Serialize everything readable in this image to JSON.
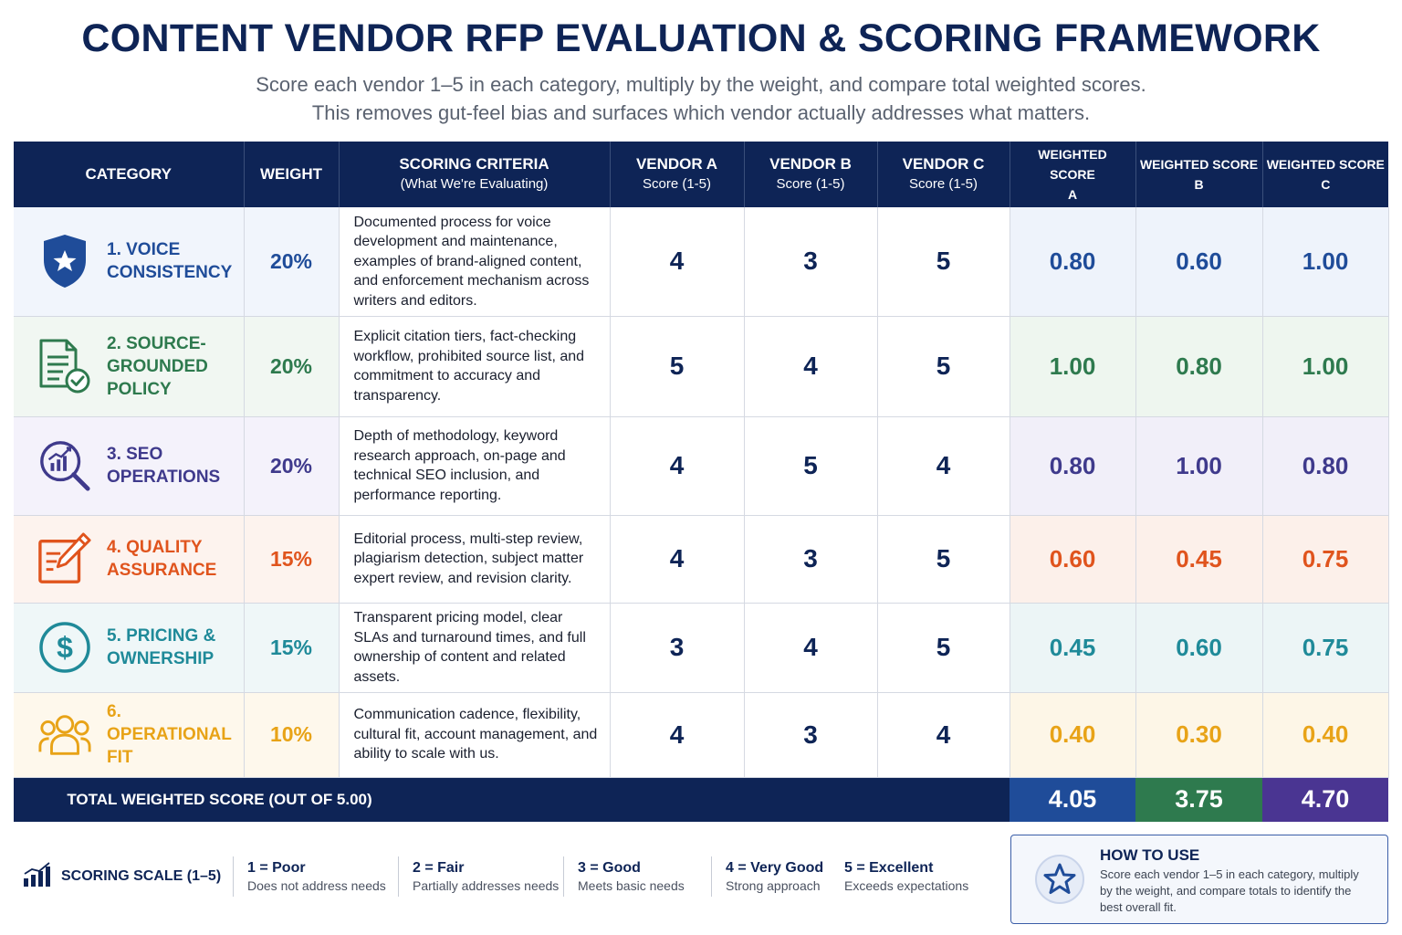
{
  "page": {
    "title": "CONTENT VENDOR RFP EVALUATION & SCORING FRAMEWORK",
    "subtitle_line1": "Score each vendor 1–5 in each category, multiply by the weight, and compare total weighted scores.",
    "subtitle_line2": "This removes gut-feel bias and surfaces which vendor actually addresses what matters."
  },
  "headers": {
    "category": "CATEGORY",
    "weight": "WEIGHT",
    "criteria": "SCORING CRITERIA",
    "criteria_sub": "(What We're Evaluating)",
    "vendor_a": "VENDOR A",
    "vendor_b": "VENDOR B",
    "vendor_c": "VENDOR C",
    "score_sub": "Score (1-5)",
    "weighted_score": "WEIGHTED SCORE",
    "ws_a": "A",
    "ws_b": "B",
    "ws_c": "C"
  },
  "rows": [
    {
      "name_line1": "1. VOICE",
      "name_line2": "CONSISTENCY",
      "name_line3": "",
      "icon": "shield-star-icon",
      "color": "#1f4c99",
      "weight": "20%",
      "criteria": "Documented process for voice development and maintenance, examples of brand-aligned content, and enforcement mechanism across writers and editors.",
      "score_a": "4",
      "score_b": "3",
      "score_c": "5",
      "ws_a": "0.80",
      "ws_b": "0.60",
      "ws_c": "1.00"
    },
    {
      "name_line1": "2. SOURCE-",
      "name_line2": "GROUNDED",
      "name_line3": "POLICY",
      "icon": "document-check-icon",
      "color": "#2e7a4e",
      "weight": "20%",
      "criteria": "Explicit citation tiers, fact-checking workflow, prohibited source list, and commitment to accuracy and transparency.",
      "score_a": "5",
      "score_b": "4",
      "score_c": "5",
      "ws_a": "1.00",
      "ws_b": "0.80",
      "ws_c": "1.00"
    },
    {
      "name_line1": "3. SEO",
      "name_line2": "OPERATIONS",
      "name_line3": "",
      "icon": "magnifier-chart-icon",
      "color": "#3f3a8c",
      "weight": "20%",
      "criteria": "Depth of methodology, keyword research approach, on-page and technical SEO inclusion, and performance reporting.",
      "score_a": "4",
      "score_b": "5",
      "score_c": "4",
      "ws_a": "0.80",
      "ws_b": "1.00",
      "ws_c": "0.80"
    },
    {
      "name_line1": "4. QUALITY",
      "name_line2": "ASSURANCE",
      "name_line3": "",
      "icon": "edit-pencil-icon",
      "color": "#e0541d",
      "weight": "15%",
      "criteria": "Editorial process, multi-step review, plagiarism detection, subject matter expert review, and revision clarity.",
      "score_a": "4",
      "score_b": "3",
      "score_c": "5",
      "ws_a": "0.60",
      "ws_b": "0.45",
      "ws_c": "0.75"
    },
    {
      "name_line1": "5. PRICING &",
      "name_line2": "OWNERSHIP",
      "name_line3": "",
      "icon": "dollar-circle-icon",
      "color": "#1f8a99",
      "weight": "15%",
      "criteria": "Transparent pricing model, clear SLAs and turnaround times, and full ownership of content and related assets.",
      "score_a": "3",
      "score_b": "4",
      "score_c": "5",
      "ws_a": "0.45",
      "ws_b": "0.60",
      "ws_c": "0.75"
    },
    {
      "name_line1": "6. OPERATIONAL",
      "name_line2": "FIT",
      "name_line3": "",
      "icon": "team-icon",
      "color": "#e8a317",
      "weight": "10%",
      "criteria": "Communication cadence, flexibility, cultural fit, account management, and ability to scale with us.",
      "score_a": "4",
      "score_b": "3",
      "score_c": "4",
      "ws_a": "0.40",
      "ws_b": "0.30",
      "ws_c": "0.40"
    }
  ],
  "total": {
    "label": "TOTAL WEIGHTED SCORE (OUT OF 5.00)",
    "a": "4.05",
    "b": "3.75",
    "c": "4.70"
  },
  "scale": {
    "title": "SCORING SCALE (1–5)",
    "icon": "bar-chart-icon",
    "levels": [
      {
        "name": "1 = Poor",
        "desc": "Does not address needs"
      },
      {
        "name": "2 = Fair",
        "desc": "Partially addresses needs"
      },
      {
        "name": "3 = Good",
        "desc": "Meets basic needs"
      },
      {
        "name": "4 = Very Good",
        "desc": "Strong approach"
      },
      {
        "name": "5 = Excellent",
        "desc": "Exceeds expectations"
      }
    ]
  },
  "howto": {
    "icon": "star-circle-icon",
    "title": "HOW TO USE",
    "body": "Score each vendor 1–5 in each category, multiply by the weight, and compare totals to identify the best overall fit."
  }
}
